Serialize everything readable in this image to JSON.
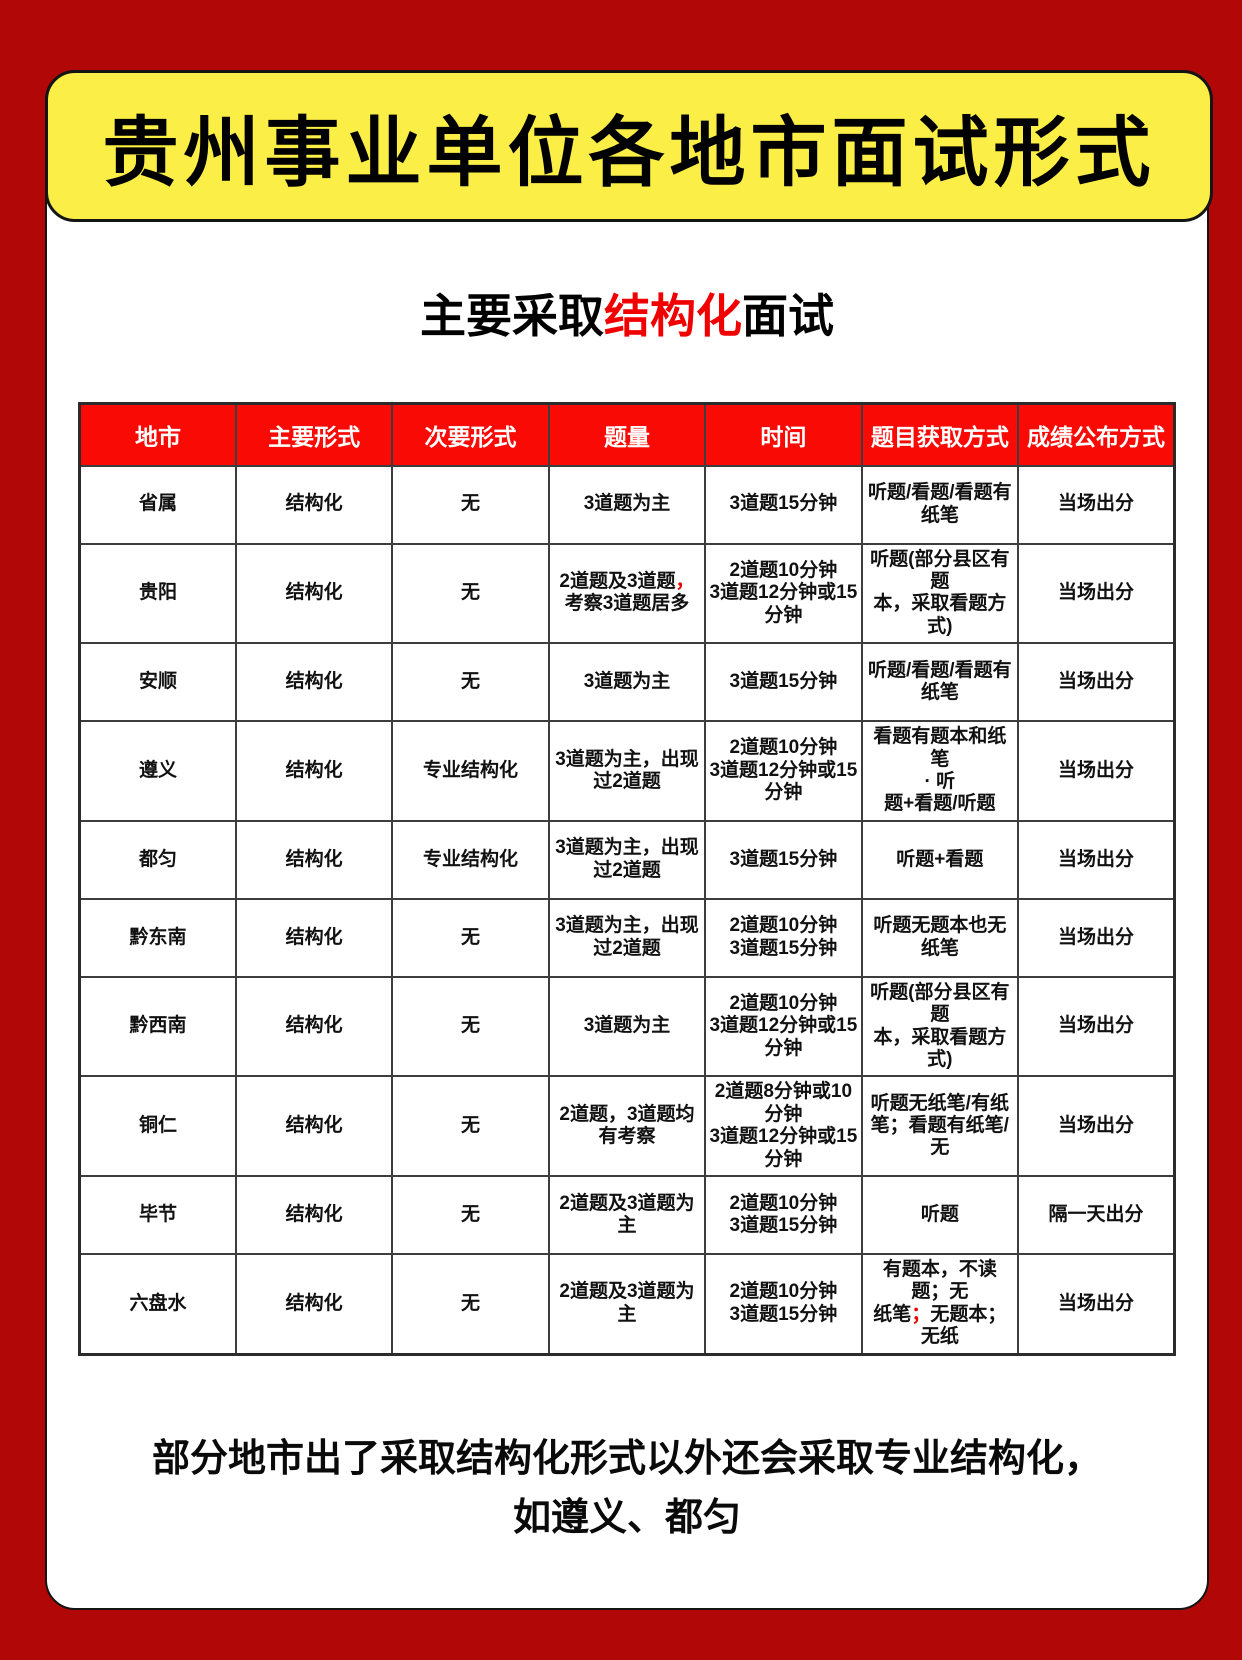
{
  "page": {
    "title": "贵州事业单位各地市面试形式",
    "subtitle": {
      "pre": "主要采取",
      "highlight": "结构化",
      "post": "面试"
    },
    "footer_line1": "部分地市出了采取结构化形式以外还会采取专业结构化，",
    "footer_line2": "如遵义、都匀"
  },
  "colors": {
    "page_border_red": "#B20707",
    "banner_yellow": "#FBEE46",
    "table_header_red": "#FA0A05",
    "highlight_red": "#F10000"
  },
  "table": {
    "headers": [
      "地市",
      "主要形式",
      "次要形式",
      "题量",
      "时间",
      "题目获取方式",
      "成绩公布方式"
    ],
    "rows": [
      {
        "city": "省属",
        "main": "结构化",
        "secondary": "无",
        "quantity": {
          "pre": "3道题为主",
          "red": "",
          "post": ""
        },
        "time": "3道题15分钟",
        "acquire": {
          "pre": "听题/看题/看题有纸笔",
          "red": "",
          "post": ""
        },
        "result": "当场出分"
      },
      {
        "city": "贵阳",
        "main": "结构化",
        "secondary": "无",
        "quantity": {
          "pre": "2道题及3道题",
          "red": "，",
          "post": "考察3道题居多"
        },
        "time": "2道题10分钟\n3道题12分钟或15分钟",
        "acquire": {
          "pre": "听题(部分县区有题\n本，采取看题方式)",
          "red": "",
          "post": ""
        },
        "result": "当场出分"
      },
      {
        "city": "安顺",
        "main": "结构化",
        "secondary": "无",
        "quantity": {
          "pre": "3道题为主",
          "red": "",
          "post": ""
        },
        "time": "3道题15分钟",
        "acquire": {
          "pre": "听题/看题/看题有纸笔",
          "red": "",
          "post": ""
        },
        "result": "当场出分"
      },
      {
        "city": "遵义",
        "main": "结构化",
        "secondary": "专业结构化",
        "quantity": {
          "pre": "3道题为主，出现过2道题",
          "red": "",
          "post": ""
        },
        "time": "2道题10分钟\n3道题12分钟或15分钟",
        "acquire": {
          "pre": "看题有题本和纸笔\n· 听\n题+看题/听题",
          "red": "",
          "post": ""
        },
        "result": "当场出分"
      },
      {
        "city": "都匀",
        "main": "结构化",
        "secondary": "专业结构化",
        "quantity": {
          "pre": "3道题为主，出现过2道题",
          "red": "",
          "post": ""
        },
        "time": "3道题15分钟",
        "acquire": {
          "pre": "听题+看题",
          "red": "",
          "post": ""
        },
        "result": "当场出分"
      },
      {
        "city": "黔东南",
        "main": "结构化",
        "secondary": "无",
        "quantity": {
          "pre": "3道题为主，出现过2道题",
          "red": "",
          "post": ""
        },
        "time": "2道题10分钟\n3道题15分钟",
        "acquire": {
          "pre": "听题无题本也无纸笔",
          "red": "",
          "post": ""
        },
        "result": "当场出分"
      },
      {
        "city": "黔西南",
        "main": "结构化",
        "secondary": "无",
        "quantity": {
          "pre": "3道题为主",
          "red": "",
          "post": ""
        },
        "time": "2道题10分钟\n3道题12分钟或15分钟",
        "acquire": {
          "pre": "听题(部分县区有题\n本，采取看题方式)",
          "red": "",
          "post": ""
        },
        "result": "当场出分"
      },
      {
        "city": "铜仁",
        "main": "结构化",
        "secondary": "无",
        "quantity": {
          "pre": "2道题，3道题均有考察",
          "red": "",
          "post": ""
        },
        "time": "2道题8分钟或10分钟\n3道题12分钟或15分钟",
        "acquire": {
          "pre": "听题无纸笔/有纸笔；看题有纸笔/无",
          "red": "",
          "post": ""
        },
        "result": "当场出分"
      },
      {
        "city": "毕节",
        "main": "结构化",
        "secondary": "无",
        "quantity": {
          "pre": "2道题及3道题为主",
          "red": "",
          "post": ""
        },
        "time": "2道题10分钟\n3道题15分钟",
        "acquire": {
          "pre": "听题",
          "red": "",
          "post": ""
        },
        "result": "隔一天出分"
      },
      {
        "city": "六盘水",
        "main": "结构化",
        "secondary": "无",
        "quantity": {
          "pre": "2道题及3道题为主",
          "red": "",
          "post": ""
        },
        "time": "2道题10分钟\n3道题15分钟",
        "acquire": {
          "pre": "有题本，不读题；无\n纸笔",
          "red": "；",
          "post": "无题本；无纸"
        },
        "result": "当场出分"
      }
    ]
  }
}
